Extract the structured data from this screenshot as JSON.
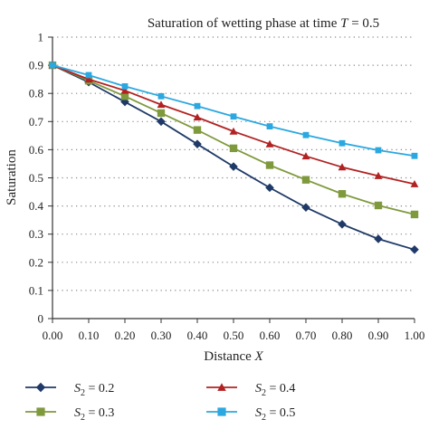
{
  "chart_data": {
    "type": "line",
    "title": "Saturation of wetting phase at time",
    "title_var": "T",
    "title_value": " = 0.5",
    "xlabel": "Distance",
    "xlabel_var": "X",
    "ylabel": "Saturation",
    "xlim": [
      0,
      1
    ],
    "ylim": [
      0,
      1
    ],
    "grid": "horizontal dotted",
    "legend_position": "bottom",
    "x_ticks": [
      "0.00",
      "0.10",
      "0.20",
      "0.30",
      "0.40",
      "0.50",
      "0.60",
      "0.70",
      "0.80",
      "0.90",
      "1.00"
    ],
    "y_ticks": [
      "0",
      "0.1",
      "0.2",
      "0.3",
      "0.4",
      "0.5",
      "0.6",
      "0.7",
      "0.8",
      "0.9",
      "1"
    ],
    "x": [
      0.0,
      0.1,
      0.2,
      0.3,
      0.4,
      0.5,
      0.6,
      0.7,
      0.8,
      0.9,
      1.0
    ],
    "series": [
      {
        "name": "S",
        "subscript": "2",
        "value_text": " = 0.2",
        "color": "#1f3a68",
        "marker": "diamond",
        "values": [
          0.9,
          0.84,
          0.77,
          0.7,
          0.62,
          0.54,
          0.465,
          0.395,
          0.335,
          0.283,
          0.245
        ]
      },
      {
        "name": "S",
        "subscript": "2",
        "value_text": " = 0.3",
        "color": "#7f9a3d",
        "marker": "square",
        "values": [
          0.9,
          0.845,
          0.79,
          0.73,
          0.67,
          0.605,
          0.545,
          0.493,
          0.443,
          0.402,
          0.37
        ]
      },
      {
        "name": "S",
        "subscript": "2",
        "value_text": " = 0.4",
        "color": "#b22222",
        "marker": "triangle",
        "values": [
          0.9,
          0.85,
          0.81,
          0.76,
          0.715,
          0.665,
          0.62,
          0.577,
          0.538,
          0.507,
          0.478
        ]
      },
      {
        "name": "S",
        "subscript": "2",
        "value_text": " = 0.5",
        "color": "#2ba8e0",
        "marker": "square",
        "values": [
          0.9,
          0.865,
          0.825,
          0.79,
          0.755,
          0.718,
          0.683,
          0.652,
          0.623,
          0.598,
          0.578
        ]
      }
    ]
  }
}
